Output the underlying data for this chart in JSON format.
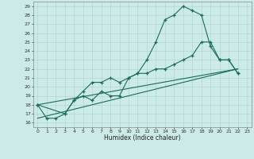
{
  "title": "",
  "xlabel": "Humidex (Indice chaleur)",
  "bg_color": "#cceae7",
  "grid_color": "#b0d8d4",
  "line_color": "#1a6b5e",
  "xlim": [
    -0.5,
    23.5
  ],
  "ylim": [
    15.5,
    29.5
  ],
  "xticks": [
    0,
    1,
    2,
    3,
    4,
    5,
    6,
    7,
    8,
    9,
    10,
    11,
    12,
    13,
    14,
    15,
    16,
    17,
    18,
    19,
    20,
    21,
    22,
    23
  ],
  "yticks": [
    16,
    17,
    18,
    19,
    20,
    21,
    22,
    23,
    24,
    25,
    26,
    27,
    28,
    29
  ],
  "series1": [
    [
      0,
      18
    ],
    [
      1,
      16.5
    ],
    [
      2,
      16.5
    ],
    [
      3,
      17
    ],
    [
      4,
      18.5
    ],
    [
      5,
      19
    ],
    [
      6,
      18.5
    ],
    [
      7,
      19.5
    ],
    [
      8,
      19
    ],
    [
      9,
      19
    ],
    [
      10,
      21
    ],
    [
      11,
      21.5
    ],
    [
      12,
      23
    ],
    [
      13,
      25
    ],
    [
      14,
      27.5
    ],
    [
      15,
      28
    ],
    [
      16,
      29
    ],
    [
      17,
      28.5
    ],
    [
      18,
      28
    ],
    [
      19,
      24.5
    ],
    [
      20,
      23
    ],
    [
      21,
      23
    ],
    [
      22,
      21.5
    ]
  ],
  "series2": [
    [
      0,
      18
    ],
    [
      3,
      17
    ],
    [
      4,
      18.5
    ],
    [
      5,
      19.5
    ],
    [
      6,
      20.5
    ],
    [
      7,
      20.5
    ],
    [
      8,
      21
    ],
    [
      9,
      20.5
    ],
    [
      10,
      21
    ],
    [
      11,
      21.5
    ],
    [
      12,
      21.5
    ],
    [
      13,
      22
    ],
    [
      14,
      22
    ],
    [
      15,
      22.5
    ],
    [
      16,
      23
    ],
    [
      17,
      23.5
    ],
    [
      18,
      25
    ],
    [
      19,
      25
    ],
    [
      20,
      23
    ],
    [
      21,
      23
    ],
    [
      22,
      21.5
    ]
  ],
  "line3": [
    [
      0,
      18
    ],
    [
      22,
      22
    ]
  ],
  "line4": [
    [
      0,
      16.5
    ],
    [
      22,
      22
    ]
  ]
}
